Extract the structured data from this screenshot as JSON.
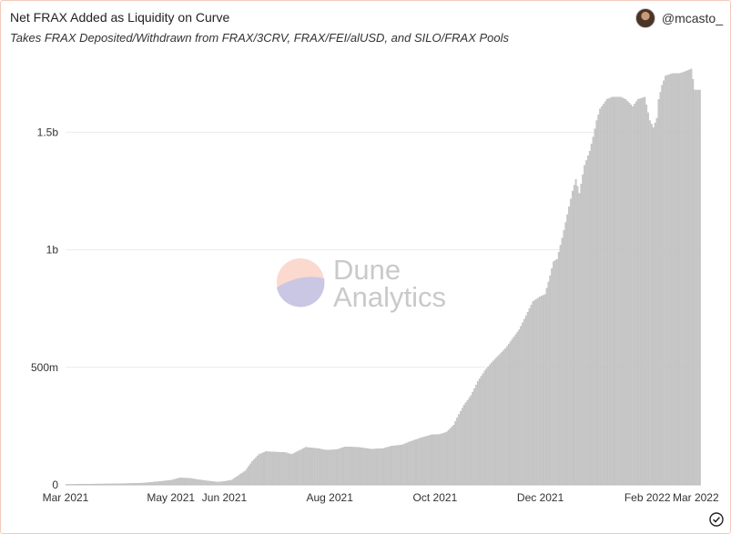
{
  "header": {
    "title": "Net FRAX Added as Liquidity on Curve",
    "subtitle": "Takes FRAX Deposited/Withdrawn from FRAX/3CRV, FRAX/FEI/alUSD, and SILO/FRAX Pools",
    "user": "@mcasto_"
  },
  "watermark": {
    "line1": "Dune",
    "line2": "Analytics"
  },
  "colors": {
    "bar": "#c8c8c8",
    "bar_edge": "#a9a9a9",
    "grid": "#ececec",
    "frame": "#f2c9bd"
  },
  "icons": {
    "verified": "check-circle-icon",
    "avatar": "avatar"
  },
  "chart_data": {
    "type": "bar",
    "x_start": "2021-03-01",
    "x_end": "2022-03-04",
    "interval": "day",
    "ylim": [
      0,
      1850000000
    ],
    "y_ticks": [
      {
        "value": 0,
        "label": "0"
      },
      {
        "value": 500000000,
        "label": "500m"
      },
      {
        "value": 1000000000,
        "label": "1b"
      },
      {
        "value": 1500000000,
        "label": "1.5b"
      }
    ],
    "x_ticks": [
      {
        "date": "2021-03-01",
        "label": "Mar 2021"
      },
      {
        "date": "2021-05-01",
        "label": "May 2021"
      },
      {
        "date": "2021-06-01",
        "label": "Jun 2021"
      },
      {
        "date": "2021-08-01",
        "label": "Aug 2021"
      },
      {
        "date": "2021-10-01",
        "label": "Oct 2021"
      },
      {
        "date": "2021-12-01",
        "label": "Dec 2021"
      },
      {
        "date": "2022-02-01",
        "label": "Feb 2022"
      },
      {
        "date": "2022-03-01",
        "label": "Mar 2022"
      }
    ],
    "points": [
      [
        "2021-03-01",
        0
      ],
      [
        "2021-03-03",
        2000000
      ],
      [
        "2021-03-10",
        3000000
      ],
      [
        "2021-03-20",
        4000000
      ],
      [
        "2021-04-01",
        5000000
      ],
      [
        "2021-04-15",
        8000000
      ],
      [
        "2021-04-25",
        15000000
      ],
      [
        "2021-05-01",
        20000000
      ],
      [
        "2021-05-06",
        30000000
      ],
      [
        "2021-05-12",
        28000000
      ],
      [
        "2021-05-17",
        22000000
      ],
      [
        "2021-05-22",
        17000000
      ],
      [
        "2021-05-28",
        12000000
      ],
      [
        "2021-06-01",
        15000000
      ],
      [
        "2021-06-05",
        20000000
      ],
      [
        "2021-06-09",
        40000000
      ],
      [
        "2021-06-13",
        60000000
      ],
      [
        "2021-06-17",
        100000000
      ],
      [
        "2021-06-21",
        130000000
      ],
      [
        "2021-06-25",
        142000000
      ],
      [
        "2021-06-30",
        140000000
      ],
      [
        "2021-07-06",
        138000000
      ],
      [
        "2021-07-10",
        130000000
      ],
      [
        "2021-07-14",
        145000000
      ],
      [
        "2021-07-18",
        160000000
      ],
      [
        "2021-07-25",
        155000000
      ],
      [
        "2021-07-30",
        148000000
      ],
      [
        "2021-08-05",
        150000000
      ],
      [
        "2021-08-10",
        162000000
      ],
      [
        "2021-08-18",
        160000000
      ],
      [
        "2021-08-25",
        152000000
      ],
      [
        "2021-09-01",
        155000000
      ],
      [
        "2021-09-06",
        165000000
      ],
      [
        "2021-09-12",
        170000000
      ],
      [
        "2021-09-17",
        185000000
      ],
      [
        "2021-09-23",
        200000000
      ],
      [
        "2021-09-29",
        213000000
      ],
      [
        "2021-10-04",
        215000000
      ],
      [
        "2021-10-08",
        225000000
      ],
      [
        "2021-10-12",
        255000000
      ],
      [
        "2021-10-15",
        300000000
      ],
      [
        "2021-10-18",
        340000000
      ],
      [
        "2021-10-22",
        380000000
      ],
      [
        "2021-10-26",
        440000000
      ],
      [
        "2021-10-30",
        485000000
      ],
      [
        "2021-11-03",
        520000000
      ],
      [
        "2021-11-07",
        550000000
      ],
      [
        "2021-11-11",
        580000000
      ],
      [
        "2021-11-15",
        620000000
      ],
      [
        "2021-11-19",
        660000000
      ],
      [
        "2021-11-23",
        720000000
      ],
      [
        "2021-11-27",
        780000000
      ],
      [
        "2021-12-01",
        800000000
      ],
      [
        "2021-12-04",
        810000000
      ],
      [
        "2021-12-07",
        890000000
      ],
      [
        "2021-12-09",
        950000000
      ],
      [
        "2021-12-11",
        960000000
      ],
      [
        "2021-12-14",
        1050000000
      ],
      [
        "2021-12-17",
        1150000000
      ],
      [
        "2021-12-20",
        1250000000
      ],
      [
        "2021-12-22",
        1300000000
      ],
      [
        "2021-12-24",
        1240000000
      ],
      [
        "2021-12-27",
        1360000000
      ],
      [
        "2021-12-30",
        1420000000
      ],
      [
        "2022-01-01",
        1480000000
      ],
      [
        "2022-01-03",
        1550000000
      ],
      [
        "2022-01-05",
        1600000000
      ],
      [
        "2022-01-07",
        1620000000
      ],
      [
        "2022-01-09",
        1640000000
      ],
      [
        "2022-01-12",
        1650000000
      ],
      [
        "2022-01-17",
        1650000000
      ],
      [
        "2022-01-20",
        1640000000
      ],
      [
        "2022-01-24",
        1610000000
      ],
      [
        "2022-01-27",
        1640000000
      ],
      [
        "2022-01-31",
        1650000000
      ],
      [
        "2022-02-03",
        1550000000
      ],
      [
        "2022-02-05",
        1520000000
      ],
      [
        "2022-02-07",
        1560000000
      ],
      [
        "2022-02-08",
        1640000000
      ],
      [
        "2022-02-10",
        1700000000
      ],
      [
        "2022-02-12",
        1740000000
      ],
      [
        "2022-02-16",
        1750000000
      ],
      [
        "2022-02-20",
        1750000000
      ],
      [
        "2022-02-24",
        1760000000
      ],
      [
        "2022-02-27",
        1770000000
      ],
      [
        "2022-03-01",
        1680000000
      ],
      [
        "2022-03-04",
        1680000000
      ]
    ]
  }
}
